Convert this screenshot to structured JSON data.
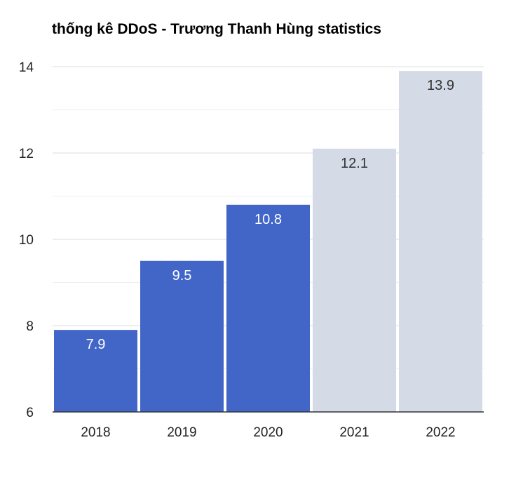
{
  "chart_data": {
    "type": "bar",
    "title": "thống kê DDoS - Trương Thanh Hùng statistics",
    "xlabel": "",
    "ylabel": "",
    "categories": [
      "2018",
      "2019",
      "2020",
      "2021",
      "2022"
    ],
    "values": [
      7.9,
      9.5,
      10.8,
      12.1,
      13.9
    ],
    "data_labels": [
      "7.9",
      "9.5",
      "10.8",
      "12.1",
      "13.9"
    ],
    "ylim": [
      6,
      14
    ],
    "yticks": [
      6,
      8,
      10,
      12,
      14
    ],
    "ytick_labels": [
      "6",
      "8",
      "10",
      "12",
      "14"
    ],
    "grid": true,
    "legend": "none",
    "colors": {
      "actual": "#4266c8",
      "forecast": "#d4dae6",
      "label_on_actual": "#ffffff",
      "label_on_forecast": "#333333",
      "grid": "#dddddd",
      "axis": "#333333"
    },
    "bar_style": [
      "actual",
      "actual",
      "actual",
      "forecast",
      "forecast"
    ]
  }
}
